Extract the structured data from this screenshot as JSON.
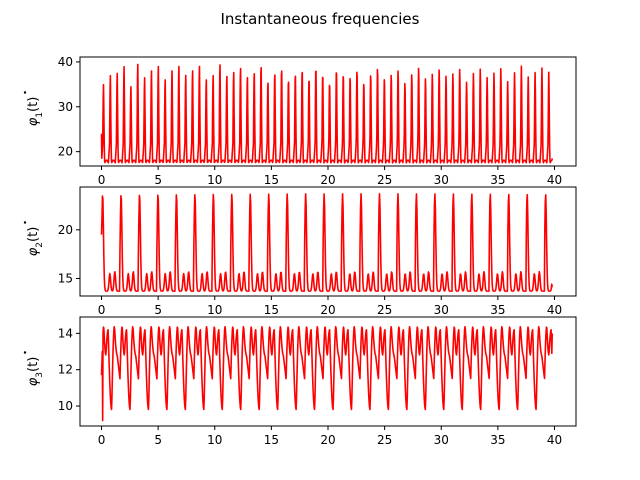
{
  "figure": {
    "title": "Instantaneous frequencies"
  },
  "chart_data": [
    {
      "type": "line",
      "ylabel_base": "φ",
      "ylabel_sub": "1",
      "ylabel_arg": "(t)",
      "xlim": [
        -1.9,
        41.9
      ],
      "ylim": [
        16.8,
        41.1
      ],
      "xticks": [
        0,
        5,
        10,
        15,
        20,
        25,
        30,
        35,
        40
      ],
      "yticks": [
        20,
        30,
        40
      ],
      "grid": false,
      "series": [
        {
          "color": "#ff0000",
          "x_start": 0,
          "x_end": 39.8,
          "period": 0.605,
          "baseline": 22.0,
          "trough": 17.5,
          "first_value": 24.0,
          "last_value": 18.5,
          "peak_values": [
            35,
            37,
            37.5,
            39,
            34.5,
            39.5,
            36.5,
            38,
            39,
            36,
            38,
            39,
            37,
            38,
            39,
            36,
            37,
            39.5,
            37,
            38,
            39,
            37,
            38,
            39.5,
            36,
            38,
            39,
            36.5,
            38,
            39,
            37,
            39.5,
            38,
            36,
            39,
            38,
            37.5,
            39,
            36,
            38,
            39.5,
            37,
            38,
            39,
            36,
            38,
            39.5,
            37,
            38,
            39,
            37.5,
            38,
            39,
            36,
            38,
            39,
            37,
            38,
            39,
            36,
            38,
            39.5,
            37,
            38,
            39,
            38
          ]
        }
      ]
    },
    {
      "type": "line",
      "ylabel_base": "φ",
      "ylabel_sub": "2",
      "ylabel_arg": "(t)",
      "xlim": [
        -1.9,
        41.9
      ],
      "ylim": [
        13.2,
        24.4
      ],
      "xticks": [
        0,
        5,
        10,
        15,
        20,
        25,
        30,
        35,
        40
      ],
      "yticks": [
        15,
        20
      ],
      "grid": false,
      "series": [
        {
          "color": "#ff0000",
          "x_start": 0,
          "x_end": 39.8,
          "period": 1.63,
          "first_value": 19.5,
          "last_value": 14.1,
          "high_peak": 23.7,
          "small_bumps": [
            15.5,
            15.7
          ],
          "trough": 13.7
        }
      ]
    },
    {
      "type": "line",
      "ylabel_base": "φ",
      "ylabel_sub": "3",
      "ylabel_arg": "(t)",
      "xlim": [
        -1.9,
        41.9
      ],
      "ylim": [
        8.9,
        14.9
      ],
      "xticks": [
        0,
        5,
        10,
        15,
        20,
        25,
        30,
        35,
        40
      ],
      "yticks": [
        10,
        12,
        14
      ],
      "grid": false,
      "series": [
        {
          "color": "#ff0000",
          "x_start": 0,
          "x_end": 39.8,
          "period": 1.63,
          "first_value": 11.7,
          "last_value": 14.0,
          "peaks": [
            14.4,
            14.2
          ],
          "mid_dip": 12.8,
          "first_dip": 9.2,
          "deep_dip": 9.8,
          "shallow_dip": 11.5
        }
      ]
    }
  ]
}
